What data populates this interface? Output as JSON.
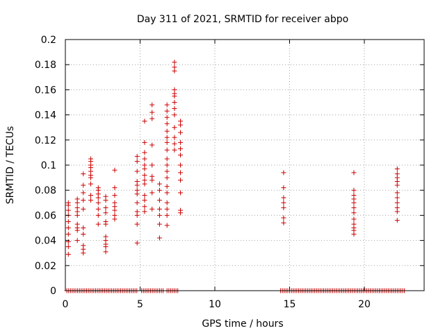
{
  "chart_data": {
    "type": "scatter",
    "title": "Day 311 of 2021, SRMTID for receiver abpo",
    "xlabel": "GPS time / hours",
    "ylabel": "SRMTID / TECUs",
    "xlim": [
      0,
      24
    ],
    "ylim": [
      0,
      0.2
    ],
    "x_ticks": [
      0,
      5,
      10,
      15,
      20
    ],
    "x_tick_labels": [
      "0",
      "5",
      "10",
      "15",
      "20"
    ],
    "y_ticks": [
      0,
      0.02,
      0.04,
      0.06,
      0.08,
      0.1,
      0.12,
      0.14,
      0.16,
      0.18,
      0.2
    ],
    "y_tick_labels": [
      "0",
      "0.02",
      "0.04",
      "0.06",
      "0.08",
      "0.1",
      "0.12",
      "0.14",
      "0.16",
      "0.18",
      "0.2"
    ],
    "grid": true,
    "marker": "+",
    "color": "#cc0000",
    "series": [
      {
        "name": "SRMTID",
        "columns": [
          {
            "x": 0.2,
            "y": [
              0.029,
              0.035,
              0.039,
              0.045,
              0.05,
              0.055,
              0.06,
              0.064,
              0.068,
              0.07
            ]
          },
          {
            "x": 0.8,
            "y": [
              0.04,
              0.048,
              0.05,
              0.053,
              0.06,
              0.063,
              0.066,
              0.07,
              0.073
            ]
          },
          {
            "x": 1.2,
            "y": [
              0.03,
              0.033,
              0.036,
              0.045,
              0.05,
              0.065,
              0.072,
              0.078,
              0.084,
              0.093
            ]
          },
          {
            "x": 1.7,
            "y": [
              0.072,
              0.076,
              0.085,
              0.09,
              0.092,
              0.095,
              0.098,
              0.1,
              0.103,
              0.105
            ]
          },
          {
            "x": 2.2,
            "y": [
              0.053,
              0.06,
              0.065,
              0.07,
              0.074,
              0.077,
              0.08,
              0.082
            ]
          },
          {
            "x": 2.7,
            "y": [
              0.031,
              0.035,
              0.037,
              0.04,
              0.043,
              0.053,
              0.055,
              0.062,
              0.066,
              0.072,
              0.075
            ]
          },
          {
            "x": 3.3,
            "y": [
              0.057,
              0.06,
              0.064,
              0.067,
              0.07,
              0.076,
              0.082,
              0.096
            ]
          },
          {
            "x": 4.8,
            "y": [
              0.038,
              0.053,
              0.06,
              0.063,
              0.07,
              0.077,
              0.08,
              0.084,
              0.087,
              0.095,
              0.103,
              0.107
            ]
          },
          {
            "x": 5.3,
            "y": [
              0.063,
              0.067,
              0.072,
              0.076,
              0.085,
              0.088,
              0.092,
              0.097,
              0.1,
              0.105,
              0.11,
              0.118,
              0.135
            ]
          },
          {
            "x": 5.8,
            "y": [
              0.065,
              0.078,
              0.088,
              0.091,
              0.1,
              0.116,
              0.137,
              0.142,
              0.148
            ]
          },
          {
            "x": 6.3,
            "y": [
              0.042,
              0.053,
              0.06,
              0.065,
              0.072,
              0.08,
              0.085
            ]
          },
          {
            "x": 6.8,
            "y": [
              0.052,
              0.06,
              0.065,
              0.07,
              0.078,
              0.083,
              0.09,
              0.095,
              0.1,
              0.105,
              0.112,
              0.118,
              0.122,
              0.127,
              0.133,
              0.138,
              0.143,
              0.148
            ]
          },
          {
            "x": 7.3,
            "y": [
              0.112,
              0.117,
              0.122,
              0.13,
              0.14,
              0.145,
              0.15,
              0.155,
              0.157,
              0.16,
              0.175,
              0.178,
              0.182
            ]
          },
          {
            "x": 7.7,
            "y": [
              0.062,
              0.064,
              0.078,
              0.088,
              0.094,
              0.1,
              0.108,
              0.113,
              0.118,
              0.126,
              0.132,
              0.135
            ]
          },
          {
            "x": 14.6,
            "y": [
              0.054,
              0.058,
              0.066,
              0.07,
              0.074,
              0.082,
              0.094
            ]
          },
          {
            "x": 19.3,
            "y": [
              0.045,
              0.048,
              0.05,
              0.053,
              0.057,
              0.062,
              0.066,
              0.07,
              0.073,
              0.076,
              0.08,
              0.094
            ]
          },
          {
            "x": 22.2,
            "y": [
              0.056,
              0.063,
              0.066,
              0.07,
              0.074,
              0.078,
              0.084,
              0.087,
              0.09,
              0.093,
              0.097
            ]
          }
        ]
      },
      {
        "name": "zero values",
        "y": 0,
        "ranges": [
          [
            0.1,
            4.8
          ],
          [
            5.1,
            6.6
          ],
          [
            6.8,
            7.6
          ],
          [
            14.4,
            22.7
          ]
        ],
        "step": 0.12
      }
    ]
  }
}
